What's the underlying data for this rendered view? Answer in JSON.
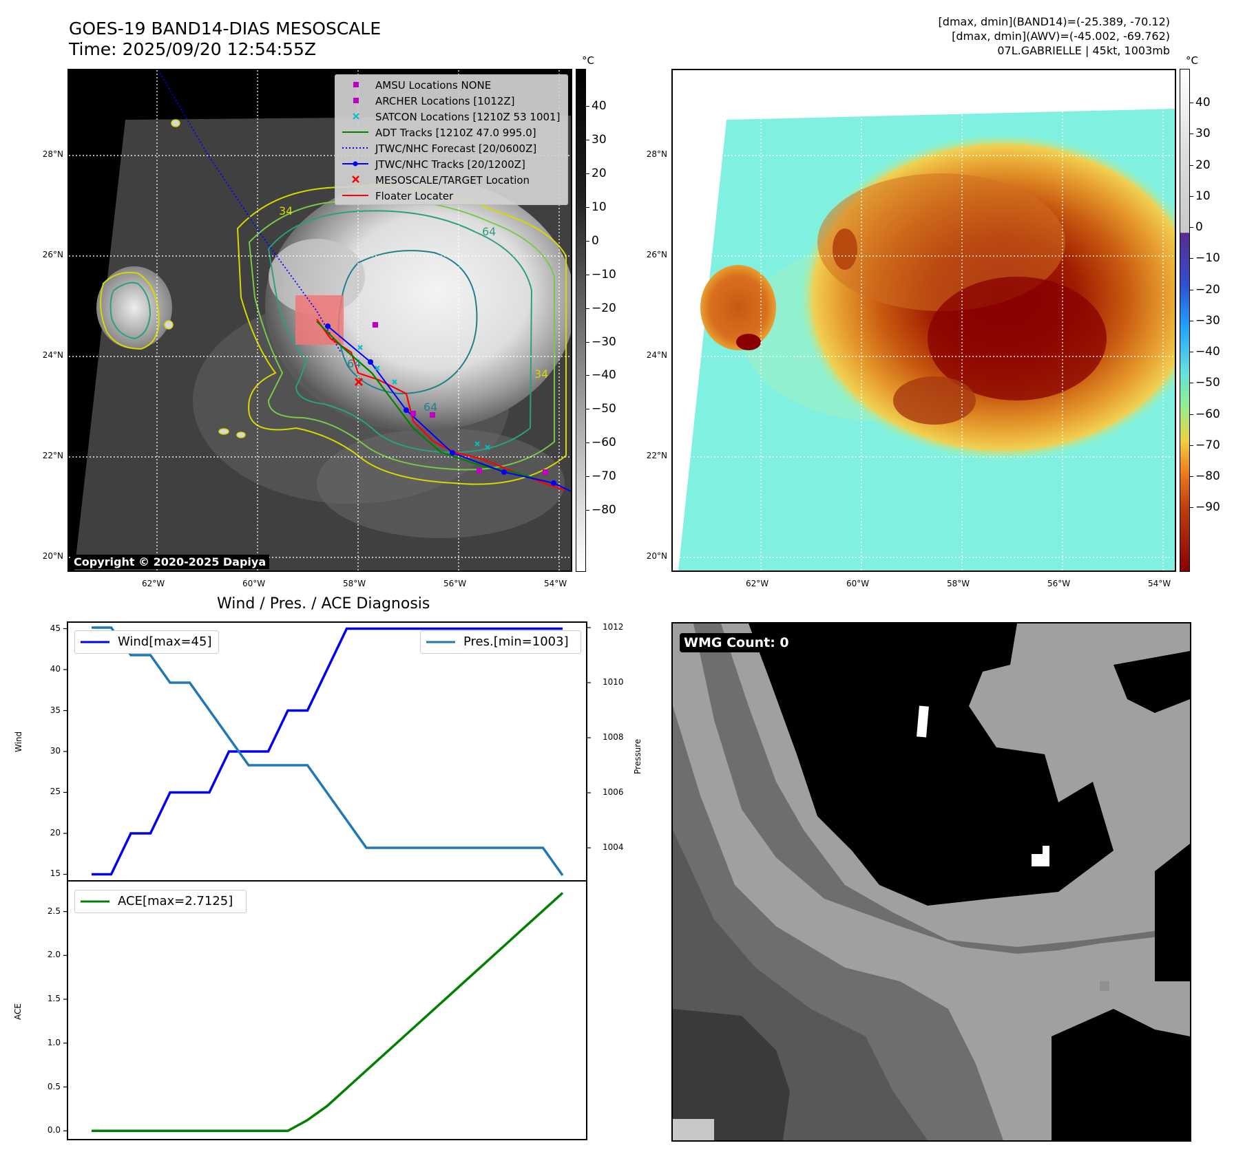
{
  "header": {
    "title": "GOES-19 BAND14-DIAS MESOSCALE",
    "time": "Time: 2025/09/20 12:54:55Z",
    "info_line1": "[dmax, dmin](BAND14)=(-25.389, -70.12)",
    "info_line2": "[dmax, dmin](AWV)=(-45.002, -69.762)",
    "info_line3": "07L.GABRIELLE | 45kt, 1003mb"
  },
  "map": {
    "lat_labels": [
      "28°N",
      "26°N",
      "24°N",
      "22°N",
      "20°N"
    ],
    "lon_labels": [
      "62°W",
      "60°W",
      "58°W",
      "56°W",
      "54°W"
    ],
    "copyright": "Copyright © 2020-2025 Dapiya",
    "contour_labels": [
      "64",
      "34",
      "64",
      "64",
      "34"
    ],
    "legend": [
      {
        "label": "AMSU Locations NONE",
        "symbol": "square",
        "color": "#c000c0"
      },
      {
        "label": "ARCHER Locations [1012Z]",
        "symbol": "square",
        "color": "#c000c0"
      },
      {
        "label": "SATCON Locations [1210Z 53 1001]",
        "symbol": "x",
        "color": "#00c0c0"
      },
      {
        "label": "ADT Tracks [1210Z 47.0 995.0]",
        "symbol": "line",
        "color": "#008000"
      },
      {
        "label": "JTWC/NHC Forecast [20/0600Z]",
        "symbol": "dotted",
        "color": "#0000ff"
      },
      {
        "label": "JTWC/NHC Tracks [20/1200Z]",
        "symbol": "line-dot",
        "color": "#0000ff"
      },
      {
        "label": "MESOSCALE/TARGET Location",
        "symbol": "x",
        "color": "#ff0000"
      },
      {
        "label": "Floater Locater",
        "symbol": "line",
        "color": "#ff0000"
      }
    ]
  },
  "colorbar_gray": {
    "unit": "°C",
    "ticks": [
      "40",
      "30",
      "20",
      "10",
      "0",
      "−10",
      "−20",
      "−30",
      "−40",
      "−50",
      "−60",
      "−70",
      "−80"
    ]
  },
  "colorbar_color": {
    "unit": "°C",
    "ticks": [
      "40",
      "30",
      "20",
      "10",
      "0",
      "−10",
      "−20",
      "−30",
      "−40",
      "−50",
      "−60",
      "−70",
      "−80",
      "−90"
    ]
  },
  "diagnosis": {
    "title": "Wind / Pres. / ACE Diagnosis",
    "wind_ylabel": "Wind",
    "pres_ylabel": "Pressure",
    "ace_ylabel": "ACE",
    "wind_ticks": [
      "45",
      "40",
      "35",
      "30",
      "25",
      "20",
      "15"
    ],
    "pres_ticks": [
      "1012",
      "1010",
      "1008",
      "1006",
      "1004"
    ],
    "ace_ticks": [
      "2.5",
      "2.0",
      "1.5",
      "1.0",
      "0.5",
      "0.0"
    ],
    "wind_legend": "Wind[max=45]",
    "pres_legend": "Pres.[min=1003]",
    "ace_legend": "ACE[max=2.7125]"
  },
  "wmg": {
    "label": "WMG Count: 0"
  },
  "chart_data": [
    {
      "type": "line",
      "title": "Wind / Pres. / ACE Diagnosis",
      "ylabel": "Wind",
      "ylim": [
        14.2,
        45.8
      ],
      "series": [
        {
          "name": "Wind[max=45]",
          "color": "#0000ee",
          "values": [
            15,
            15,
            20,
            20,
            25,
            25,
            25,
            30,
            30,
            30,
            35,
            35,
            40,
            45,
            45,
            45,
            45,
            45,
            45,
            45,
            45,
            45,
            45,
            45,
            45
          ]
        }
      ]
    },
    {
      "type": "line",
      "ylabel": "Pressure",
      "ylim": [
        1002.8,
        1012.2
      ],
      "series": [
        {
          "name": "Pres.[min=1003]",
          "color": "#1f77b4",
          "values": [
            1012,
            1012,
            1011,
            1011,
            1010,
            1010,
            1009,
            1008,
            1007,
            1007,
            1007,
            1007,
            1006,
            1005,
            1004,
            1004,
            1004,
            1004,
            1004,
            1004,
            1004,
            1004,
            1004,
            1004,
            1003
          ]
        }
      ]
    },
    {
      "type": "line",
      "ylabel": "ACE",
      "ylim": [
        -0.1,
        2.85
      ],
      "series": [
        {
          "name": "ACE[max=2.7125]",
          "color": "#008000",
          "values": [
            0,
            0,
            0,
            0,
            0,
            0,
            0,
            0,
            0,
            0,
            0,
            0.1225,
            0.2825,
            0.485,
            0.6875,
            0.89,
            1.0925,
            1.295,
            1.4975,
            1.7,
            1.9025,
            2.105,
            2.3075,
            2.51,
            2.7125
          ]
        }
      ]
    }
  ]
}
